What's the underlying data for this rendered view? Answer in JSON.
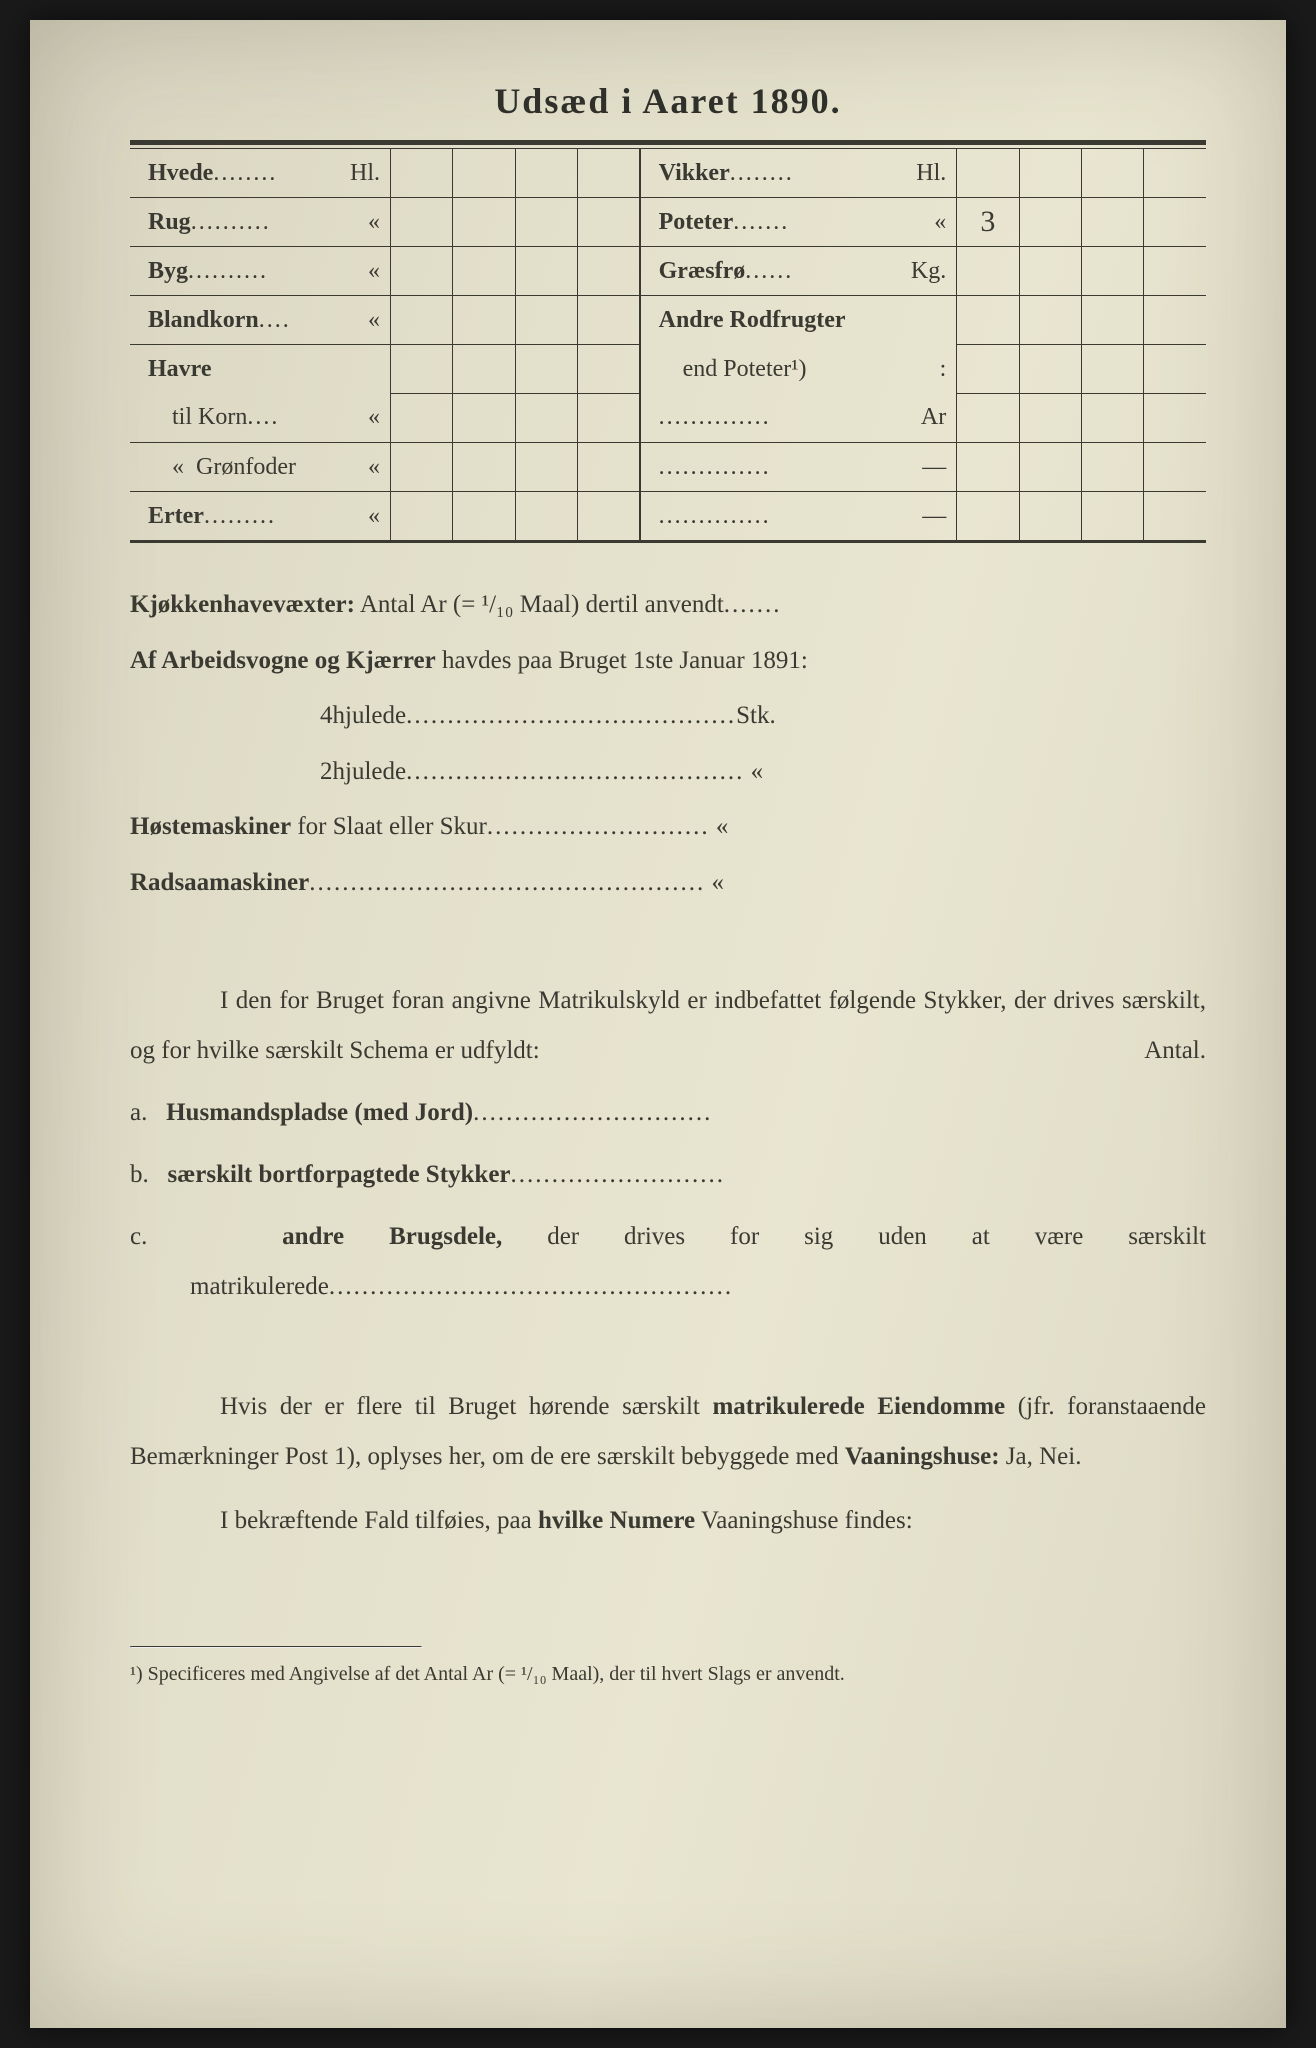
{
  "title": "Udsæd i Aaret 1890.",
  "seed_table": {
    "left_rows": [
      {
        "label": "Hvede",
        "dots": "........",
        "unit": "Hl.",
        "vals": [
          "",
          "",
          "",
          ""
        ]
      },
      {
        "label": "Rug",
        "dots": "..........",
        "unit": "«",
        "vals": [
          "",
          "",
          "",
          ""
        ]
      },
      {
        "label": "Byg",
        "dots": "..........",
        "unit": "«",
        "vals": [
          "",
          "",
          "",
          ""
        ]
      },
      {
        "label": "Blandkorn",
        "dots": "....",
        "unit": "«",
        "vals": [
          "",
          "",
          "",
          ""
        ]
      },
      {
        "label": "Havre",
        "dots": "",
        "unit": "",
        "vals": [
          "",
          "",
          "",
          ""
        ],
        "noborder": true
      },
      {
        "label": "    til Korn",
        "dots": "....",
        "unit": "«",
        "vals": [
          "",
          "",
          "",
          ""
        ],
        "normal": true
      },
      {
        "label": "    «  Grønfoder",
        "dots": "",
        "unit": "«",
        "vals": [
          "",
          "",
          "",
          ""
        ],
        "normal": true
      },
      {
        "label": "Erter",
        "dots": ".........",
        "unit": "«",
        "vals": [
          "",
          "",
          "",
          ""
        ]
      }
    ],
    "right_rows": [
      {
        "label": "Vikker",
        "dots": "........",
        "unit": "Hl.",
        "vals": [
          "",
          "",
          "",
          ""
        ]
      },
      {
        "label": "Poteter",
        "dots": ".......",
        "unit": "«",
        "vals": [
          "3",
          "",
          "",
          ""
        ]
      },
      {
        "label": "Græsfrø",
        "dots": "......",
        "unit": "Kg.",
        "vals": [
          "",
          "",
          "",
          ""
        ]
      },
      {
        "label": "Andre Rodfrugter",
        "dots": "",
        "unit": "",
        "vals": [
          "",
          "",
          "",
          ""
        ],
        "noborder": true
      },
      {
        "label": "    end Poteter¹)",
        "dots": "",
        "unit": ":",
        "vals": [
          "",
          "",
          "",
          ""
        ],
        "normal": true,
        "noborder": true
      },
      {
        "label": "",
        "dots": "..............",
        "unit": "Ar",
        "vals": [
          "",
          "",
          "",
          ""
        ],
        "normal": true
      },
      {
        "label": "",
        "dots": "..............",
        "unit": "—",
        "vals": [
          "",
          "",
          "",
          ""
        ],
        "normal": true
      },
      {
        "label": "",
        "dots": "..............",
        "unit": "—",
        "vals": [
          "",
          "",
          "",
          ""
        ],
        "normal": true
      }
    ]
  },
  "kitchen": {
    "label_bold": "Kjøkkenhavevæxter:",
    "label_rest": " Antal Ar (= ¹/₁₀ Maal) dertil anvendt",
    "dots": "......."
  },
  "wagons": {
    "intro_bold": "Af Arbeidsvogne og Kjærrer",
    "intro_rest": " havdes paa Bruget 1ste Januar 1891:",
    "row1_label": "4hjulede",
    "row1_dots": "........................................",
    "row1_unit": "Stk.",
    "row2_label": "2hjulede",
    "row2_dots": ".........................................",
    "row2_unit": "«"
  },
  "harvest": {
    "label_bold": "Høstemaskiner",
    "label_rest": " for Slaat eller Skur",
    "dots": "...........................",
    "unit": "«"
  },
  "rowseed": {
    "label_bold": "Radsaamaskiner",
    "dots": "................................................",
    "unit": "«"
  },
  "matrikul": {
    "p1": "I den for Bruget foran angivne Matrikulskyld er indbefattet følgende Stykker, der drives særskilt, og for hvilke særskilt Schema er udfyldt:",
    "antal": "Antal.",
    "a_pre": "a.   ",
    "a_bold": "Husmandspladse (med Jord)",
    "a_dots": ".............................",
    "b_pre": "b.   ",
    "b_bold": "særskilt bortforpagtede Stykker",
    "b_dots": "..........................",
    "c_pre": "c.   ",
    "c_bold": "andre Brugsdele,",
    "c_rest": " der drives for sig uden at være særskilt matrikulerede",
    "c_dots": "................................................."
  },
  "vaaning": {
    "p1a": "Hvis der er flere til Bruget hørende særskilt ",
    "p1bold1": "matrikulerede Eiendomme",
    "p1b": " (jfr. foranstaaende Bemærkninger Post 1), oplyses her, om de ere særskilt bebyggede med ",
    "p1bold2": "Vaaningshuse:",
    "p1c": " Ja, Nei.",
    "p2a": "I bekræftende Fald tilføies, paa ",
    "p2bold": "hvilke Numere",
    "p2b": " Vaaningshuse findes:"
  },
  "footnote": {
    "text": "¹) Specificeres med Angivelse af det Antal Ar (= ¹/₁₀ Maal), der til hvert Slags er anvendt."
  },
  "colors": {
    "paper": "#e2dfca",
    "ink": "#3a3a32"
  }
}
